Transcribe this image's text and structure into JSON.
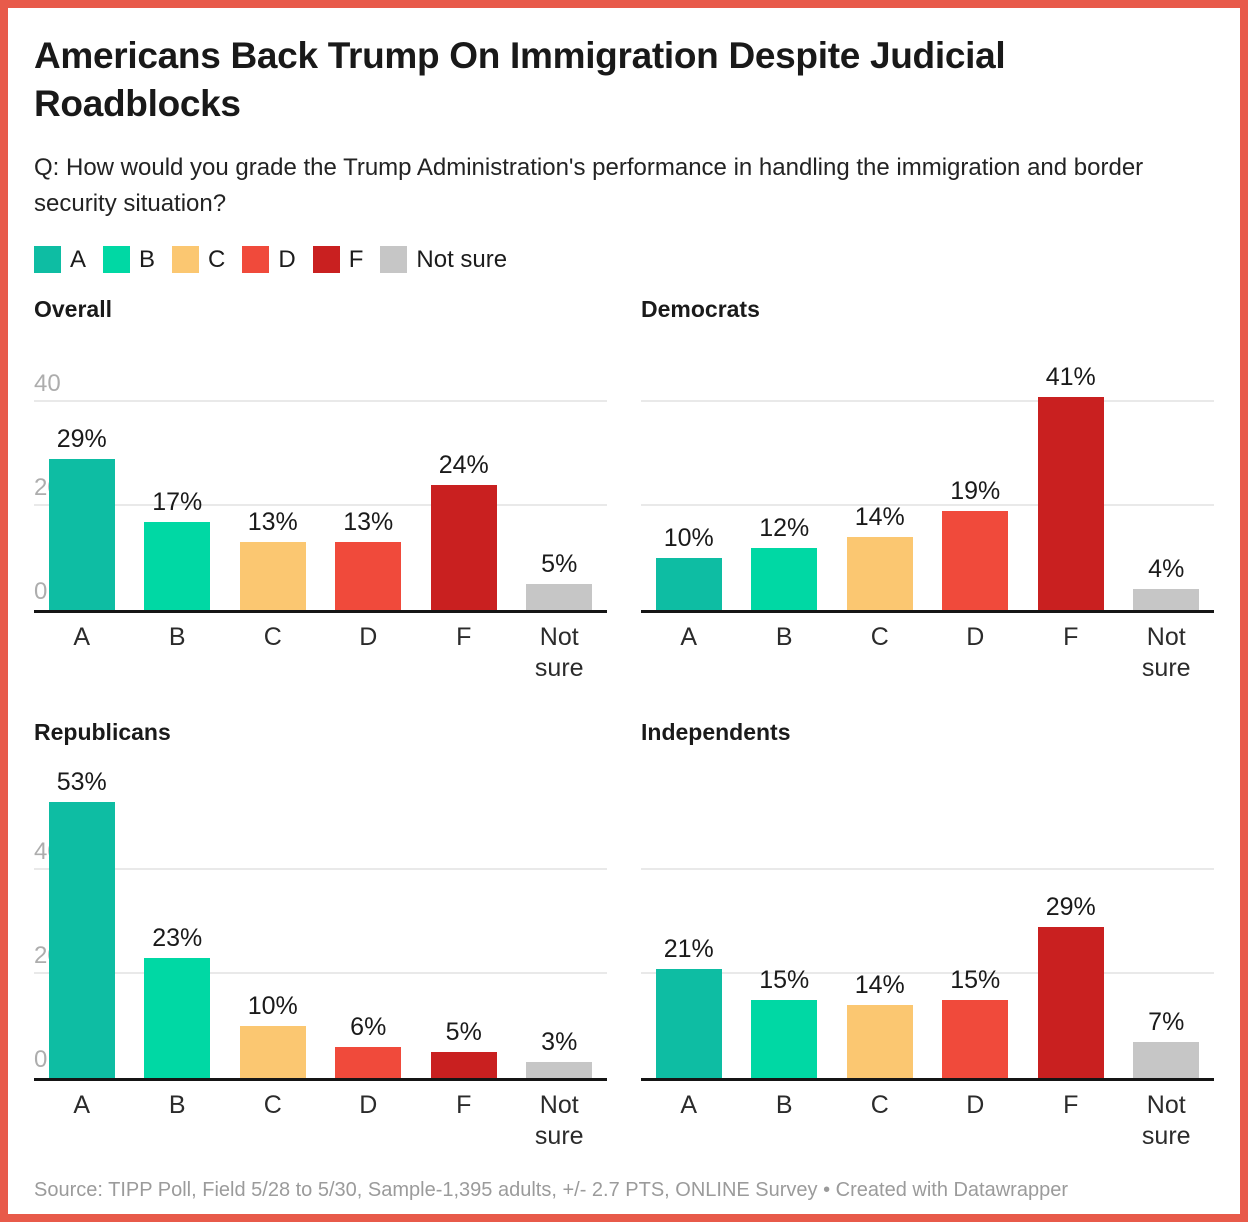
{
  "frame": {
    "border_color": "#e85a4a",
    "background": "#ffffff"
  },
  "header": {
    "title": "Americans Back Trump On Immigration Despite Judicial Roadblocks",
    "question": "Q: How would you grade the Trump Administration's performance in handling the immigration and border security situation?"
  },
  "chart_data": {
    "type": "bar",
    "categories": [
      "A",
      "B",
      "C",
      "D",
      "F",
      "Not sure"
    ],
    "colors": [
      "#0ebda3",
      "#00d8a4",
      "#fbc771",
      "#f04a3b",
      "#c92020",
      "#c6c6c6"
    ],
    "unit": "%",
    "y_ticks": [
      40,
      20,
      0
    ],
    "ylim": [
      0,
      55
    ],
    "grid": true,
    "legend_position": "top",
    "panels": [
      {
        "title": "Overall",
        "values": [
          29,
          17,
          13,
          13,
          24,
          5
        ],
        "show_y_ticks": true
      },
      {
        "title": "Democrats",
        "values": [
          10,
          12,
          14,
          19,
          41,
          4
        ],
        "show_y_ticks": false
      },
      {
        "title": "Republicans",
        "values": [
          53,
          23,
          10,
          6,
          5,
          3
        ],
        "show_y_ticks": true
      },
      {
        "title": "Independents",
        "values": [
          21,
          15,
          14,
          15,
          29,
          7
        ],
        "show_y_ticks": false
      }
    ]
  },
  "footer": {
    "source": "Source: TIPP Poll, Field 5/28 to 5/30, Sample-1,395 adults, +/- 2.7 PTS, ONLINE Survey • Created with Datawrapper"
  }
}
